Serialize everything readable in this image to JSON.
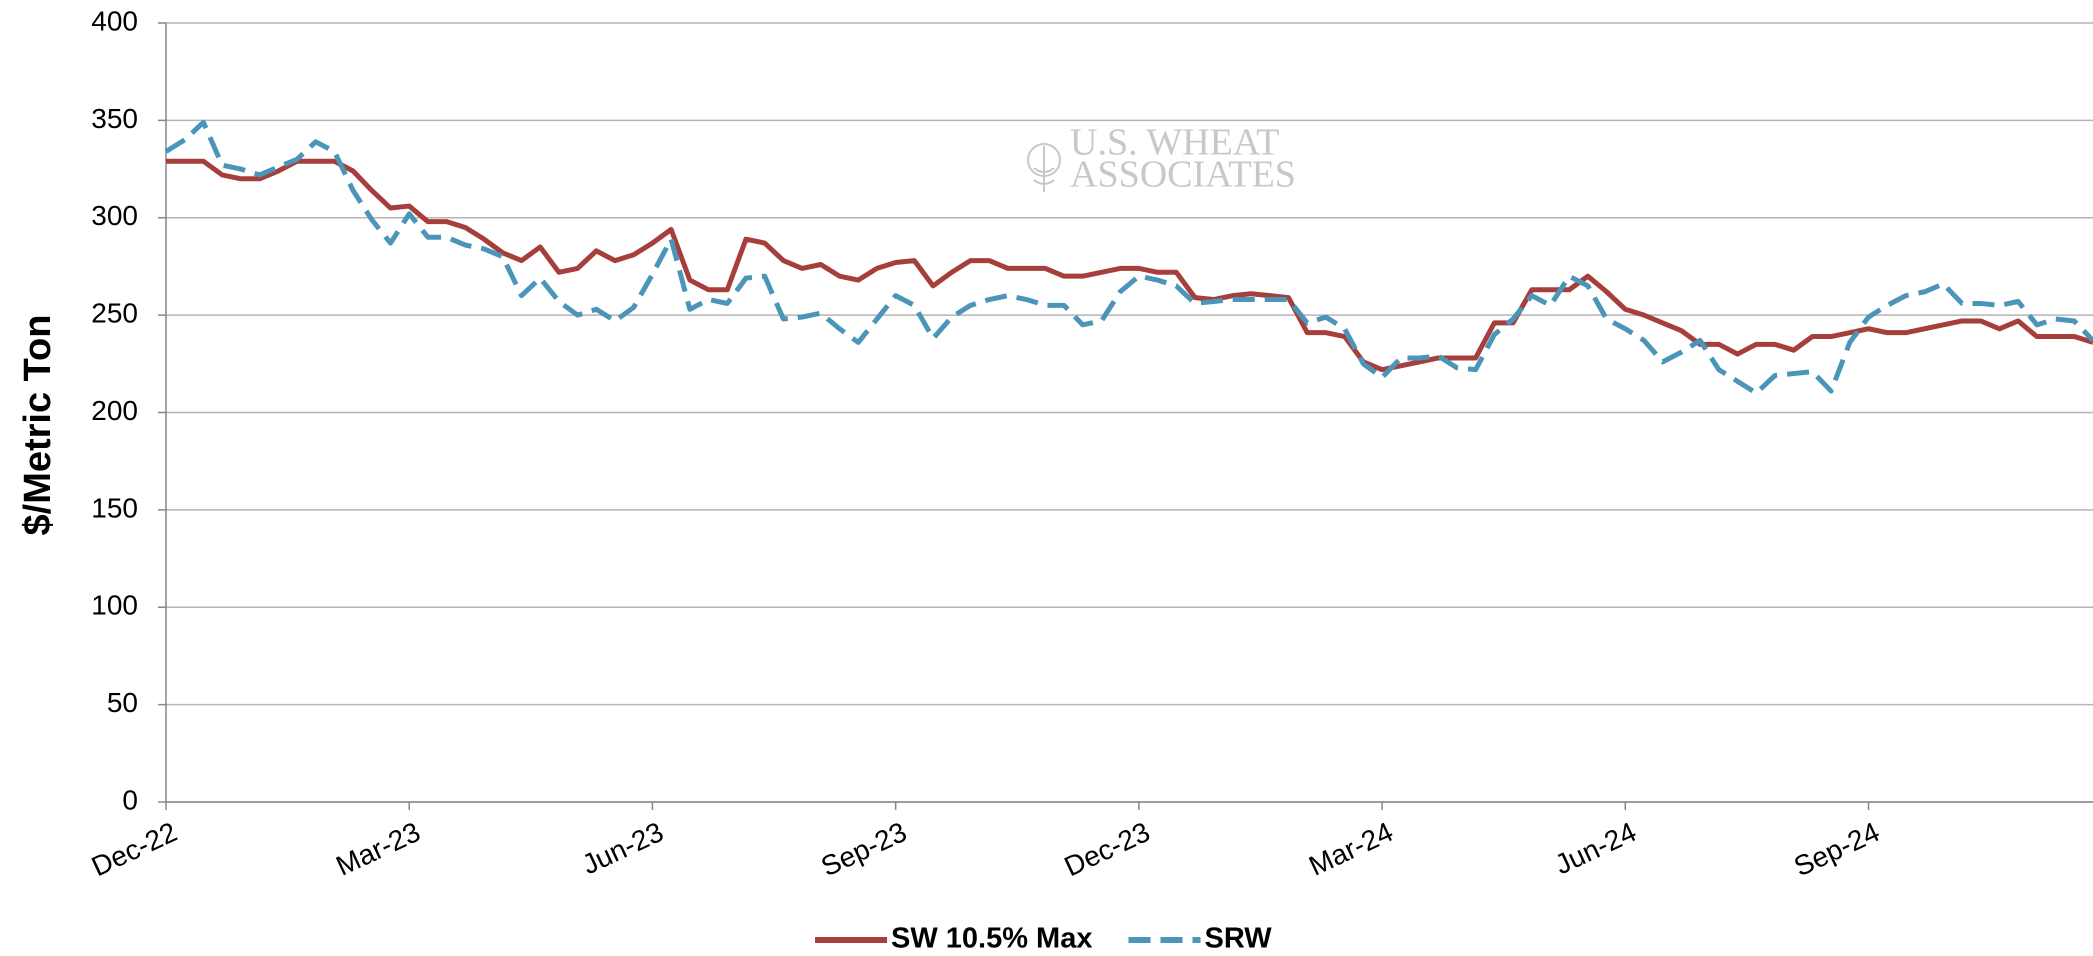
{
  "chart_data": {
    "type": "line",
    "y_label": "$/Metric Ton",
    "watermark": [
      "U.S. WHEAT",
      "ASSOCIATES"
    ],
    "categories": [
      "Dec-22",
      null,
      null,
      null,
      null,
      null,
      null,
      null,
      null,
      null,
      null,
      null,
      null,
      "Mar-23",
      null,
      null,
      null,
      null,
      null,
      null,
      null,
      null,
      null,
      null,
      null,
      null,
      "Jun-23",
      null,
      null,
      null,
      null,
      null,
      null,
      null,
      null,
      null,
      null,
      null,
      null,
      "Sep-23",
      null,
      null,
      null,
      null,
      null,
      null,
      null,
      null,
      null,
      null,
      null,
      null,
      "Dec-23",
      null,
      null,
      null,
      null,
      null,
      null,
      null,
      null,
      null,
      null,
      null,
      null,
      "Mar-24",
      null,
      null,
      null,
      null,
      null,
      null,
      null,
      null,
      null,
      null,
      null,
      null,
      "Jun-24",
      null,
      null,
      null,
      null,
      null,
      null,
      null,
      null,
      null,
      null,
      null,
      null,
      "Sep-24",
      null,
      null,
      null,
      null,
      null,
      null,
      null,
      null,
      null,
      null,
      null,
      null
    ],
    "series": [
      {
        "name": "SW 10.5% Max",
        "color": "#a63f3b",
        "line_style": "solid",
        "values": [
          329,
          329,
          329,
          322,
          320,
          320,
          324,
          329,
          329,
          329,
          324,
          314,
          305,
          306,
          298,
          298,
          295,
          289,
          282,
          278,
          285,
          272,
          274,
          283,
          278,
          281,
          287,
          294,
          268,
          263,
          263,
          289,
          287,
          278,
          274,
          276,
          270,
          268,
          274,
          277,
          278,
          265,
          272,
          278,
          278,
          274,
          274,
          274,
          270,
          270,
          272,
          274,
          274,
          272,
          272,
          259,
          258,
          260,
          261,
          260,
          259,
          241,
          241,
          239,
          226,
          222,
          224,
          226,
          228,
          228,
          228,
          246,
          246,
          263,
          263,
          263,
          270,
          262,
          253,
          250,
          246,
          242,
          235,
          235,
          230,
          235,
          235,
          232,
          239,
          239,
          241,
          243,
          241,
          241,
          243,
          245,
          247,
          247,
          243,
          247,
          239,
          239,
          239,
          236
        ]
      },
      {
        "name": "SRW",
        "color": "#4a95b8",
        "line_style": "dashed",
        "values": [
          334,
          340,
          349,
          327,
          325,
          322,
          326,
          330,
          339,
          334,
          314,
          299,
          287,
          302,
          290,
          290,
          286,
          284,
          280,
          260,
          269,
          257,
          250,
          253,
          247,
          254,
          271,
          289,
          253,
          258,
          256,
          269,
          270,
          248,
          249,
          251,
          243,
          236,
          248,
          260,
          255,
          238,
          249,
          255,
          258,
          260,
          258,
          255,
          255,
          245,
          247,
          262,
          270,
          268,
          265,
          256,
          257,
          258,
          258,
          258,
          258,
          246,
          249,
          243,
          225,
          218,
          228,
          228,
          229,
          223,
          222,
          240,
          248,
          260,
          255,
          270,
          265,
          248,
          243,
          237,
          226,
          231,
          237,
          222,
          216,
          210,
          219,
          220,
          221,
          211,
          236,
          249,
          255,
          260,
          262,
          266,
          256,
          256,
          255,
          257,
          245,
          248,
          247,
          237
        ]
      }
    ],
    "ylim": [
      0,
      400
    ],
    "yticks": [
      0,
      50,
      100,
      150,
      200,
      250,
      300,
      350,
      400
    ],
    "grid": true,
    "legend": "bottom"
  }
}
